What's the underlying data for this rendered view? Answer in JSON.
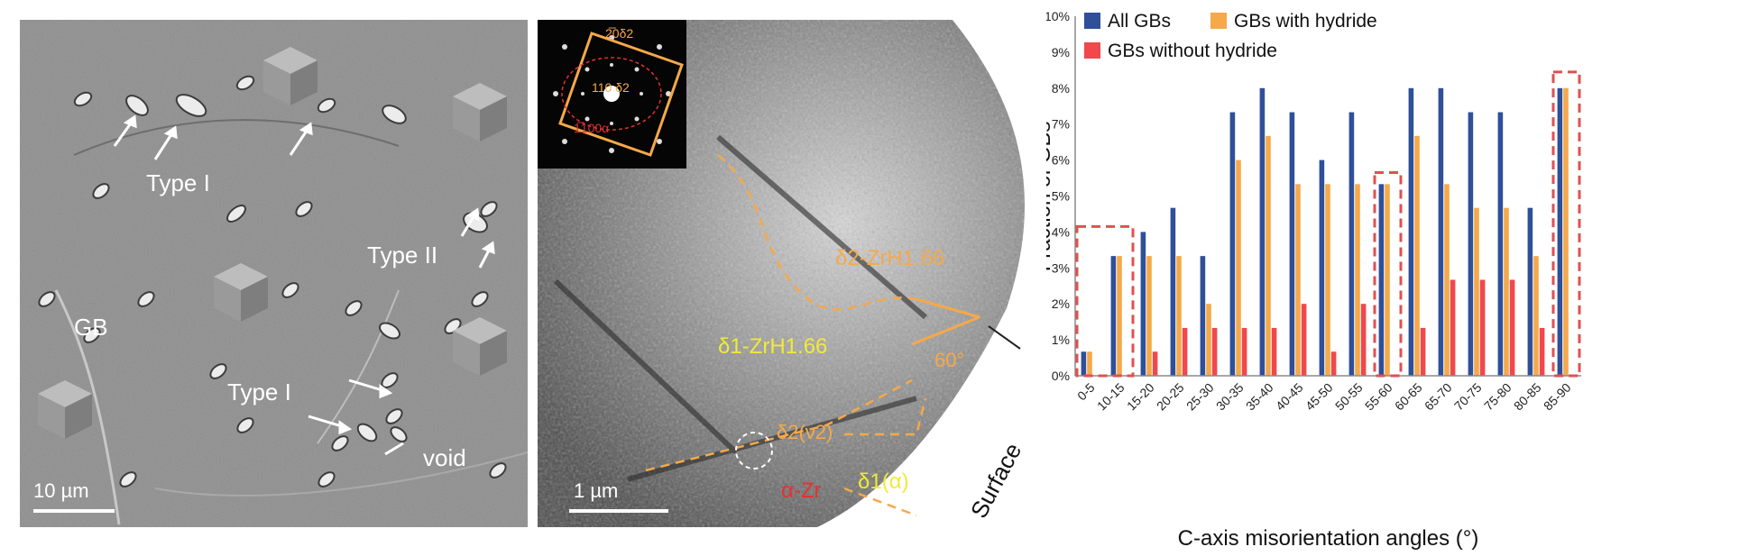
{
  "sem_panel": {
    "labels": {
      "type1_top": "Type I",
      "type2": "Type II",
      "gb": "GB",
      "type1_bottom": "Type I",
      "void": "void"
    },
    "scalebar": "10 µm"
  },
  "tem_panel": {
    "inset_labels": {
      "diff_top": "2̅0δ2",
      "diff_mid": "110 δ2",
      "diff_bottom": "1̅100α"
    },
    "labels": {
      "delta2": "δ2-ZrH1.66",
      "delta1": "δ1-ZrH1.66",
      "angle": "60°",
      "delta2_v2": "δ2(ν2)",
      "delta1_alpha": "δ1(α)",
      "alpha_zr": "α-Zr",
      "surface": "Surface"
    },
    "scalebar": "1 µm"
  },
  "chart_data": {
    "type": "bar",
    "categories": [
      "0-5",
      "10-15",
      "15-20",
      "20-25",
      "25-30",
      "30-35",
      "35-40",
      "40-45",
      "45-50",
      "50-55",
      "55-60",
      "60-65",
      "65-70",
      "70-75",
      "75-80",
      "80-85",
      "85-90"
    ],
    "series": [
      {
        "name": "All GBs",
        "color": "#2f4f99",
        "values": [
          0.67,
          3.33,
          4.0,
          4.67,
          3.33,
          7.33,
          8.0,
          7.33,
          6.0,
          7.33,
          5.33,
          8.0,
          8.0,
          7.33,
          7.33,
          4.67,
          8.0
        ]
      },
      {
        "name": "GBs with hydride",
        "color": "#f5a94a",
        "values": [
          0.67,
          3.33,
          3.33,
          3.33,
          2.0,
          6.0,
          6.67,
          5.33,
          5.33,
          5.33,
          5.33,
          6.67,
          5.33,
          4.67,
          4.67,
          3.33,
          8.0
        ]
      },
      {
        "name": "GBs without hydride",
        "color": "#f0484c",
        "values": [
          0,
          0,
          0.67,
          1.33,
          1.33,
          1.33,
          1.33,
          2.0,
          0.67,
          2.0,
          0,
          1.33,
          2.67,
          2.67,
          2.67,
          1.33,
          0
        ]
      }
    ],
    "xlabel": "C-axis misorientation angles (°)",
    "ylabel": "Fraction of GBs",
    "ylim": [
      0,
      10
    ],
    "yticks": [
      "0%",
      "1%",
      "2%",
      "3%",
      "4%",
      "5%",
      "6%",
      "7%",
      "8%",
      "9%",
      "10%"
    ],
    "grid": false,
    "legend_position": "top-left",
    "highlighted_categories": [
      "0-5",
      "10-15",
      "55-60",
      "85-90"
    ]
  }
}
